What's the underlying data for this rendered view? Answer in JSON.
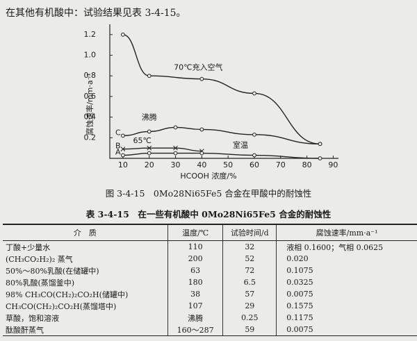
{
  "intro": "在其他有机酸中：试验结果见表 3-4-15。",
  "chart_data": {
    "type": "line",
    "x_label": "HCOOH 浓度/%",
    "y_label": "腐蚀速率/mm·a⁻¹",
    "xlim": [
      5,
      92
    ],
    "ylim": [
      0,
      1.3
    ],
    "xticks": [
      10,
      20,
      30,
      40,
      50,
      60,
      70,
      80,
      90
    ],
    "yticks": [
      0.2,
      0.4,
      0.6,
      0.8,
      {
        "value": 1,
        "label": "1.0"
      },
      1.2
    ],
    "color": "#222222",
    "series": [
      {
        "name": "70℃充入空气",
        "marker": "circle",
        "x": [
          10,
          20,
          40,
          60,
          85
        ],
        "values": [
          1.2,
          0.8,
          0.77,
          0.63,
          0.14
        ]
      },
      {
        "name": "沸腾",
        "tag": "C",
        "marker": "circle",
        "x": [
          10,
          20,
          30,
          40,
          60,
          85
        ],
        "values": [
          0.22,
          0.26,
          0.3,
          0.28,
          0.23,
          0.14
        ]
      },
      {
        "name": "65℃",
        "tag": "B",
        "marker": "x",
        "x": [
          10,
          20,
          30,
          40
        ],
        "values": [
          0.09,
          0.1,
          0.1,
          0.07
        ]
      },
      {
        "name": "室温",
        "tag": "A",
        "marker": "circle",
        "x": [
          10,
          20,
          30,
          40,
          60,
          85
        ],
        "values": [
          0.03,
          0.05,
          0.05,
          0.05,
          0.03,
          0.0
        ]
      }
    ]
  },
  "figure_caption": "图 3-4-15　0Mo28Ni65Fe5 合金在甲酸中的耐蚀性",
  "table": {
    "title": "表 3-4-15　在一些有机酸中 0Mo28Ni65Fe5 合金的耐蚀性",
    "header": [
      "介　质",
      "温度/℃",
      "试验时间/d",
      "腐蚀速率/mm·a⁻¹"
    ],
    "rows": [
      [
        "丁酸+少量水",
        "110",
        "32",
        "液相 0.1600；气相 0.0625"
      ],
      [
        "(CH₃CO₂H₂)₂ 蒸气",
        "200",
        "52",
        "0.020"
      ],
      [
        "50%～80%乳酸(在储罐中)",
        "63",
        "72",
        "0.1075"
      ],
      [
        "80%乳酸(蒸馏釜中)",
        "180",
        "6.5",
        "0.0325"
      ],
      [
        "98% CH₃CO(CH₂)₂CO₂H(储罐中)",
        "38",
        "57",
        "0.0075"
      ],
      [
        "CH₃CO(CH₂)₂CO₂H(蒸馏塔中)",
        "107",
        "29",
        "0.1575"
      ],
      [
        "草酸，饱和溶液",
        "沸腾",
        "0.25",
        "0.1175"
      ],
      [
        "酞酸酐蒸气",
        "160～287",
        "59",
        "0.0075"
      ]
    ]
  }
}
